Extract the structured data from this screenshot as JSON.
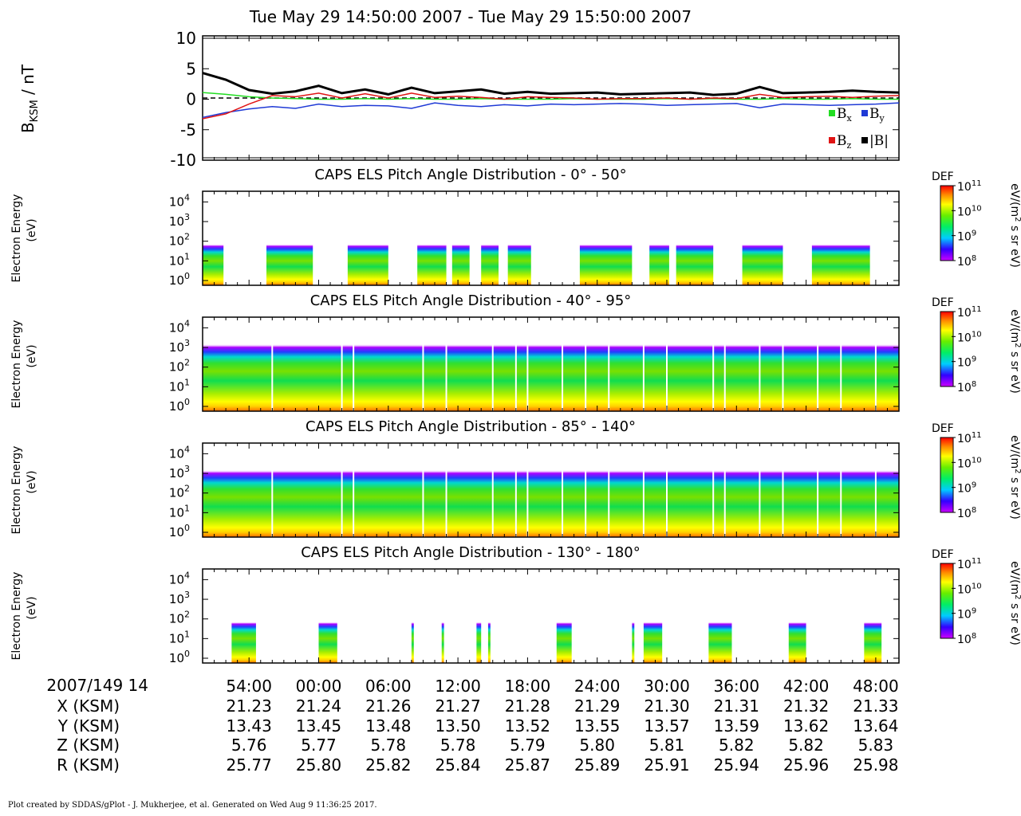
{
  "title": "Tue May 29 14:50:00 2007 - Tue May 29 15:50:00 2007",
  "footer": "Plot created by SDDAS/gPlot - J. Mukherjee, et al.  Generated on Wed Aug 9 11:36:25 2017.",
  "colors": {
    "bx": "#22dd22",
    "by": "#1f3ad6",
    "bz": "#e01414",
    "btot": "#000000"
  },
  "mag_panel": {
    "ylabel_main": "B",
    "ylabel_sub": "KSM",
    "ylabel_unit": " / nT",
    "yticks": [
      "10",
      "5",
      "0",
      "-5",
      "-10"
    ],
    "legend": {
      "bx": "B",
      "bx_sub": "x",
      "by": "B",
      "by_sub": "y",
      "bz": "B",
      "bz_sub": "z",
      "btot": "|B|"
    }
  },
  "spec_panels": [
    {
      "title": "CAPS ELS Pitch Angle Distribution - 0° - 50°"
    },
    {
      "title": "CAPS ELS Pitch Angle Distribution - 40° - 95°"
    },
    {
      "title": "CAPS ELS Pitch Angle Distribution - 85° - 140°"
    },
    {
      "title": "CAPS ELS Pitch Angle Distribution - 130° - 180°"
    }
  ],
  "spec_common": {
    "ylabel1": "Electron Energy",
    "ylabel2": "(eV)",
    "yticks": [
      "10",
      "10",
      "10",
      "10",
      "10"
    ],
    "yticks_exp": [
      "4",
      "3",
      "2",
      "1",
      "0"
    ],
    "colorbar_label": "DEF",
    "colorbar_unit_a": "eV/(m",
    "colorbar_unit_sup": "2",
    "colorbar_unit_b": " s sr eV)",
    "colorbar_ticks": [
      "10",
      "10",
      "10",
      "10"
    ],
    "colorbar_ticks_exp": [
      "11",
      "10",
      "9",
      "8"
    ]
  },
  "time_axis": {
    "date_label": "2007/149 14",
    "ticks": [
      "54:00",
      "00:00",
      "06:00",
      "12:00",
      "18:00",
      "24:00",
      "30:00",
      "36:00",
      "42:00",
      "48:00"
    ],
    "rows": [
      {
        "label": "X (KSM)",
        "values": [
          "21.23",
          "21.24",
          "21.26",
          "21.27",
          "21.28",
          "21.29",
          "21.30",
          "21.31",
          "21.32",
          "21.33"
        ]
      },
      {
        "label": "Y (KSM)",
        "values": [
          "13.43",
          "13.45",
          "13.48",
          "13.50",
          "13.52",
          "13.55",
          "13.57",
          "13.59",
          "13.62",
          "13.64"
        ]
      },
      {
        "label": "Z (KSM)",
        "values": [
          "5.76",
          "5.77",
          "5.78",
          "5.78",
          "5.79",
          "5.80",
          "5.81",
          "5.82",
          "5.82",
          "5.83"
        ]
      },
      {
        "label": "R (KSM)",
        "values": [
          "25.77",
          "25.80",
          "25.82",
          "25.84",
          "25.87",
          "25.89",
          "25.91",
          "25.94",
          "25.96",
          "25.98"
        ]
      }
    ]
  },
  "chart_data": {
    "type": "line",
    "x_unit": "minutes after 14:50",
    "xlim": [
      0,
      60
    ],
    "ylim": [
      -10,
      10
    ],
    "series": [
      {
        "name": "|B|",
        "x": [
          0,
          2,
          4,
          6,
          8,
          10,
          12,
          14,
          16,
          18,
          20,
          22,
          24,
          26,
          28,
          30,
          32,
          34,
          36,
          38,
          40,
          42,
          44,
          46,
          48,
          50,
          52,
          54,
          56,
          58,
          60
        ],
        "values": [
          4.3,
          3.2,
          1.5,
          0.9,
          1.3,
          2.2,
          1.0,
          1.6,
          0.8,
          1.9,
          1.0,
          1.3,
          1.6,
          0.9,
          1.2,
          0.9,
          1.0,
          1.1,
          0.8,
          0.9,
          1.0,
          1.1,
          0.7,
          0.9,
          2.0,
          1.0,
          1.1,
          1.2,
          1.4,
          1.2,
          1.1
        ]
      },
      {
        "name": "Bx",
        "x": [
          0,
          2,
          4,
          6,
          8,
          10,
          12,
          14,
          16,
          18,
          20,
          22,
          24,
          26,
          28,
          30,
          32,
          34,
          36,
          38,
          40,
          42,
          44,
          46,
          48,
          50,
          52,
          54,
          56,
          58,
          60
        ],
        "values": [
          1.1,
          0.8,
          0.4,
          0.2,
          0.1,
          0.0,
          0.0,
          0.1,
          0.0,
          0.1,
          0.0,
          0.0,
          0.1,
          0.0,
          0.0,
          0.0,
          0.1,
          0.0,
          0.0,
          0.0,
          0.1,
          0.0,
          0.1,
          0.0,
          0.0,
          0.1,
          0.0,
          0.0,
          0.1,
          0.0,
          0.0
        ]
      },
      {
        "name": "By",
        "x": [
          0,
          2,
          4,
          6,
          8,
          10,
          12,
          14,
          16,
          18,
          20,
          22,
          24,
          26,
          28,
          30,
          32,
          34,
          36,
          38,
          40,
          42,
          44,
          46,
          48,
          50,
          52,
          54,
          56,
          58,
          60
        ],
        "values": [
          -3.0,
          -2.2,
          -1.6,
          -1.2,
          -1.5,
          -0.8,
          -1.2,
          -1.0,
          -1.1,
          -1.5,
          -0.6,
          -1.0,
          -1.2,
          -0.9,
          -1.1,
          -0.8,
          -0.9,
          -0.8,
          -0.7,
          -0.8,
          -1.0,
          -0.9,
          -0.8,
          -0.7,
          -1.4,
          -0.8,
          -0.9,
          -1.0,
          -0.9,
          -0.8,
          -0.6
        ]
      },
      {
        "name": "Bz",
        "x": [
          0,
          2,
          4,
          6,
          8,
          10,
          12,
          14,
          16,
          18,
          20,
          22,
          24,
          26,
          28,
          30,
          32,
          34,
          36,
          38,
          40,
          42,
          44,
          46,
          48,
          50,
          52,
          54,
          56,
          58,
          60
        ],
        "values": [
          -3.2,
          -2.4,
          -0.8,
          0.6,
          0.4,
          1.0,
          0.2,
          0.9,
          0.2,
          1.0,
          0.3,
          0.5,
          0.3,
          0.0,
          0.4,
          0.3,
          0.2,
          0.0,
          0.1,
          0.1,
          0.2,
          0.0,
          0.2,
          0.1,
          0.8,
          0.3,
          0.4,
          0.5,
          0.3,
          0.5,
          0.6
        ]
      }
    ]
  }
}
